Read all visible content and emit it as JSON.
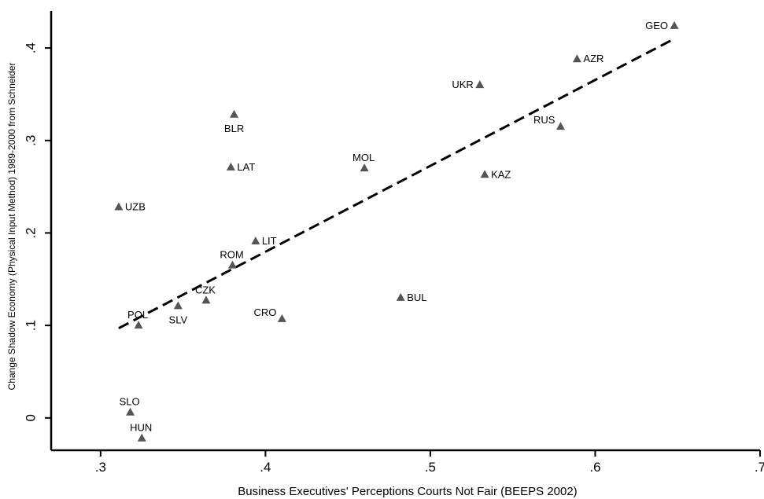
{
  "chart_data": {
    "type": "scatter",
    "xlabel": "Business Executives' Perceptions Courts Not Fair (BEEPS 2002)",
    "ylabel": "Change Shadow Economy (Physical Input Method) 1989-2000 from Schneider",
    "xlim": [
      0.27,
      0.7
    ],
    "ylim": [
      -0.035,
      0.44
    ],
    "x_ticks": [
      0.3,
      0.4,
      0.5,
      0.6,
      0.7
    ],
    "x_tick_labels": [
      ".3",
      ".4",
      ".5",
      ".6",
      ".7"
    ],
    "y_ticks": [
      0,
      0.1,
      0.2,
      0.3,
      0.4
    ],
    "y_tick_labels": [
      "0",
      ".1",
      ".2",
      ".3",
      ".4"
    ],
    "grid": false,
    "marker_color": "#555555",
    "points": [
      {
        "label": "GEO",
        "x": 0.648,
        "y": 0.424,
        "label_pos": "left"
      },
      {
        "label": "AZR",
        "x": 0.589,
        "y": 0.388,
        "label_pos": "right"
      },
      {
        "label": "UKR",
        "x": 0.53,
        "y": 0.36,
        "label_pos": "left"
      },
      {
        "label": "RUS",
        "x": 0.579,
        "y": 0.315,
        "label_pos": "above-left"
      },
      {
        "label": "BLR",
        "x": 0.381,
        "y": 0.328,
        "label_pos": "below"
      },
      {
        "label": "LAT",
        "x": 0.379,
        "y": 0.271,
        "label_pos": "right"
      },
      {
        "label": "MOL",
        "x": 0.46,
        "y": 0.27,
        "label_pos": "above"
      },
      {
        "label": "KAZ",
        "x": 0.533,
        "y": 0.263,
        "label_pos": "right"
      },
      {
        "label": "UZB",
        "x": 0.311,
        "y": 0.228,
        "label_pos": "right"
      },
      {
        "label": "LIT",
        "x": 0.394,
        "y": 0.191,
        "label_pos": "right"
      },
      {
        "label": "ROM",
        "x": 0.38,
        "y": 0.165,
        "label_pos": "above"
      },
      {
        "label": "BUL",
        "x": 0.482,
        "y": 0.13,
        "label_pos": "right"
      },
      {
        "label": "CZK",
        "x": 0.364,
        "y": 0.127,
        "label_pos": "above"
      },
      {
        "label": "SLV",
        "x": 0.347,
        "y": 0.121,
        "label_pos": "below"
      },
      {
        "label": "CRO",
        "x": 0.41,
        "y": 0.107,
        "label_pos": "above-left"
      },
      {
        "label": "POL",
        "x": 0.323,
        "y": 0.1,
        "label_pos": "above"
      },
      {
        "label": "SLO",
        "x": 0.318,
        "y": 0.006,
        "label_pos": "above"
      },
      {
        "label": "HUN",
        "x": 0.325,
        "y": -0.022,
        "label_pos": "above"
      }
    ],
    "fit_line": {
      "style": "dashed",
      "x": [
        0.311,
        0.648
      ],
      "y": [
        0.097,
        0.41
      ]
    }
  }
}
